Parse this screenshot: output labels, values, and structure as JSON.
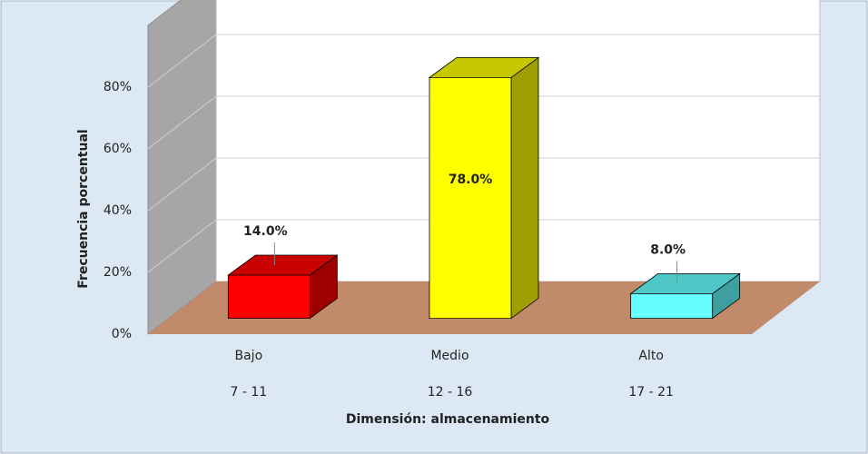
{
  "chart_data": {
    "type": "bar3d",
    "categories": [
      "Bajo",
      "Medio",
      "Alto"
    ],
    "category_ranges": [
      "7 - 11",
      "12 - 16",
      "17 - 21"
    ],
    "values": [
      14,
      78,
      8
    ],
    "value_labels": [
      "14.0%",
      "78.0%",
      "8.0%"
    ],
    "colors": [
      "#ff0000",
      "#ffff00",
      "#66ffff"
    ],
    "xlabel": "Dimensión: almacenamiento",
    "ylabel": "Frecuencia porcentual",
    "ylim": [
      0,
      100
    ],
    "yticks": [
      {
        "value": 0,
        "label": "0%"
      },
      {
        "value": 20,
        "label": "20%"
      },
      {
        "value": 40,
        "label": "40%"
      },
      {
        "value": 60,
        "label": "60%"
      },
      {
        "value": 80,
        "label": "80%"
      }
    ],
    "grid": true
  }
}
